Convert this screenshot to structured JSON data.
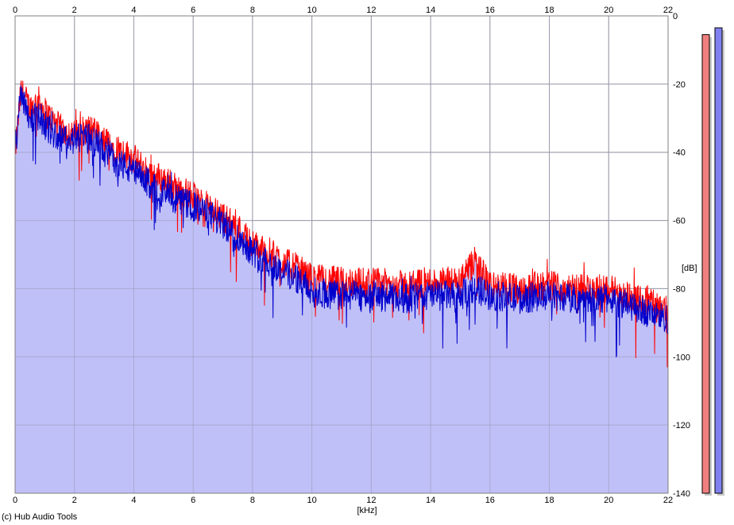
{
  "copyright": "(c) Hub Audio Tools",
  "chart_data": {
    "type": "line",
    "xlabel": "[kHz]",
    "ylabel": "[dB]",
    "xlim": [
      0,
      22
    ],
    "ylim": [
      -140,
      0
    ],
    "x_ticks": [
      0,
      2,
      4,
      6,
      8,
      10,
      12,
      14,
      16,
      18,
      20,
      22
    ],
    "y_ticks": [
      0,
      -20,
      -40,
      -60,
      -80,
      -100,
      -120,
      -140
    ],
    "x_tick_labels": [
      "0",
      "2",
      "4",
      "6",
      "8",
      "10",
      "12",
      "14",
      "16",
      "18",
      "20",
      "22"
    ],
    "y_tick_labels": [
      "0",
      "-20",
      "-40",
      "-60",
      "-80",
      "-100",
      "-120",
      "-140"
    ],
    "grid": true,
    "fill_color": "#c0c0f8",
    "series": [
      {
        "color": "#ff0000",
        "x": [
          0,
          0.2,
          0.5,
          0.8,
          1.0,
          1.5,
          2.0,
          2.5,
          3.0,
          3.5,
          4.0,
          4.5,
          5.0,
          5.5,
          6.0,
          6.5,
          7.0,
          7.5,
          8.0,
          8.5,
          9.0,
          9.5,
          10.0,
          11.0,
          12.0,
          13.0,
          14.0,
          15.0,
          15.5,
          16.0,
          17.0,
          18.0,
          19.0,
          20.0,
          21.0,
          22.0
        ],
        "values": [
          -40,
          -22,
          -27,
          -25,
          -28,
          -33,
          -35,
          -33,
          -37,
          -39,
          -42,
          -46,
          -48,
          -51,
          -53,
          -56,
          -59,
          -62,
          -67,
          -69,
          -72,
          -74,
          -77,
          -78,
          -78,
          -79,
          -78,
          -78,
          -72,
          -79,
          -80,
          -79,
          -80,
          -80,
          -83,
          -86
        ]
      },
      {
        "color": "#0000cc",
        "x": [
          0,
          0.2,
          0.5,
          0.8,
          1.0,
          1.5,
          2.0,
          2.5,
          3.0,
          3.5,
          4.0,
          4.5,
          5.0,
          5.5,
          6.0,
          6.5,
          7.0,
          7.5,
          8.0,
          8.5,
          9.0,
          9.5,
          10.0,
          11.0,
          12.0,
          13.0,
          14.0,
          15.0,
          15.5,
          16.0,
          17.0,
          18.0,
          19.0,
          20.0,
          21.0,
          22.0
        ],
        "values": [
          -40,
          -22,
          -30,
          -29,
          -32,
          -36,
          -36,
          -36,
          -39,
          -43,
          -46,
          -49,
          -52,
          -54,
          -56,
          -58,
          -61,
          -65,
          -69,
          -72,
          -75,
          -77,
          -81,
          -82,
          -82,
          -83,
          -82,
          -82,
          -80,
          -82,
          -83,
          -82,
          -83,
          -83,
          -86,
          -89
        ]
      }
    ],
    "level_meters": [
      {
        "color": "#f08080",
        "level": -5.5
      },
      {
        "color": "#8080f0",
        "level": -3.5
      }
    ]
  }
}
